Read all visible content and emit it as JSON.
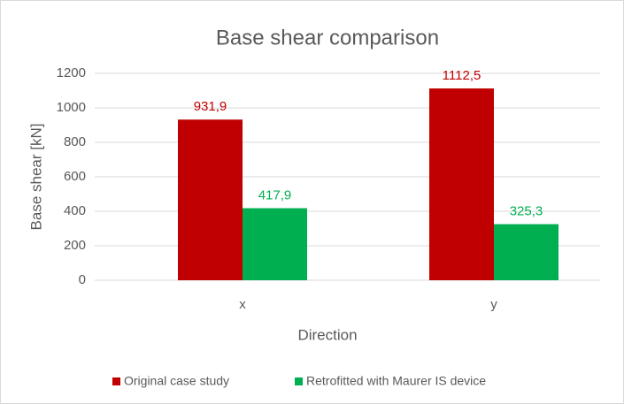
{
  "chart_data": {
    "type": "bar",
    "title": "Base shear comparison",
    "x_label": "Direction",
    "y_label": "Base shear  [kN]",
    "categories": [
      "x",
      "y"
    ],
    "series": [
      {
        "name": "Original case study",
        "color": "#c00000",
        "values": [
          931.9,
          1112.5
        ],
        "value_labels": [
          "931,9",
          "1112,5"
        ]
      },
      {
        "name": "Retrofitted with Maurer IS device",
        "color": "#00b050",
        "values": [
          417.9,
          325.3
        ],
        "value_labels": [
          "417,9",
          "325,3"
        ]
      }
    ],
    "ylim": [
      0,
      1200
    ],
    "yticks": [
      0,
      200,
      400,
      600,
      800,
      1000,
      1200
    ],
    "grid": true
  }
}
